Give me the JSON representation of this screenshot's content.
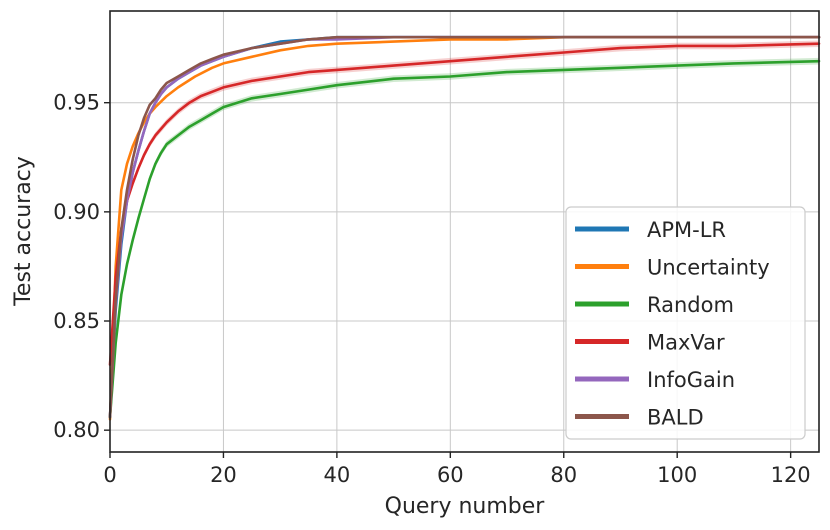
{
  "chart_data": {
    "type": "line",
    "title": "",
    "xlabel": "Query number",
    "ylabel": "Test accuracy",
    "xlim": [
      0,
      125
    ],
    "ylim": [
      0.79,
      0.992
    ],
    "grid": true,
    "legend_position": "lower-right",
    "x_ticks": [
      0,
      20,
      40,
      60,
      80,
      100,
      120
    ],
    "x_tick_labels": [
      "0",
      "20",
      "40",
      "60",
      "80",
      "100",
      "120"
    ],
    "y_ticks": [
      0.8,
      0.85,
      0.9,
      0.95
    ],
    "y_tick_labels": [
      "0.80",
      "0.85",
      "0.90",
      "0.95"
    ],
    "series": [
      {
        "name": "APM-LR",
        "color": "#1f77b4",
        "x": [
          0,
          1,
          2,
          3,
          4,
          5,
          6,
          7,
          8,
          9,
          10,
          12,
          14,
          16,
          18,
          20,
          25,
          30,
          35,
          40,
          50,
          60,
          80,
          100,
          125
        ],
        "y": [
          0.806,
          0.855,
          0.885,
          0.905,
          0.918,
          0.928,
          0.937,
          0.945,
          0.95,
          0.954,
          0.957,
          0.961,
          0.964,
          0.967,
          0.969,
          0.971,
          0.975,
          0.978,
          0.979,
          0.98,
          0.98,
          0.98,
          0.98,
          0.98,
          0.98
        ]
      },
      {
        "name": "Uncertainty",
        "color": "#ff7f0e",
        "x": [
          0,
          1,
          2,
          3,
          4,
          5,
          6,
          7,
          8,
          10,
          12,
          15,
          18,
          20,
          25,
          30,
          35,
          40,
          50,
          60,
          70,
          80,
          100,
          125
        ],
        "y": [
          0.805,
          0.875,
          0.91,
          0.922,
          0.93,
          0.936,
          0.941,
          0.945,
          0.948,
          0.953,
          0.957,
          0.962,
          0.966,
          0.968,
          0.971,
          0.974,
          0.976,
          0.977,
          0.978,
          0.979,
          0.979,
          0.98,
          0.98,
          0.98
        ]
      },
      {
        "name": "Random",
        "color": "#2ca02c",
        "x": [
          0,
          1,
          2,
          3,
          4,
          5,
          6,
          7,
          8,
          9,
          10,
          12,
          14,
          16,
          18,
          20,
          25,
          30,
          35,
          40,
          50,
          60,
          70,
          80,
          90,
          100,
          110,
          125
        ],
        "y": [
          0.806,
          0.84,
          0.862,
          0.876,
          0.887,
          0.897,
          0.906,
          0.915,
          0.922,
          0.927,
          0.931,
          0.935,
          0.939,
          0.942,
          0.945,
          0.948,
          0.952,
          0.954,
          0.956,
          0.958,
          0.961,
          0.962,
          0.964,
          0.965,
          0.966,
          0.967,
          0.968,
          0.969
        ]
      },
      {
        "name": "MaxVar",
        "color": "#d62728",
        "x": [
          0,
          1,
          2,
          3,
          4,
          5,
          6,
          7,
          8,
          10,
          12,
          14,
          16,
          18,
          20,
          25,
          30,
          35,
          40,
          50,
          60,
          70,
          80,
          90,
          100,
          110,
          125
        ],
        "y": [
          0.83,
          0.87,
          0.892,
          0.905,
          0.913,
          0.92,
          0.926,
          0.931,
          0.935,
          0.941,
          0.946,
          0.95,
          0.953,
          0.955,
          0.957,
          0.96,
          0.962,
          0.964,
          0.965,
          0.967,
          0.969,
          0.971,
          0.973,
          0.975,
          0.976,
          0.976,
          0.977
        ]
      },
      {
        "name": "InfoGain",
        "color": "#9467bd",
        "x": [
          0,
          1,
          2,
          3,
          4,
          5,
          6,
          7,
          8,
          9,
          10,
          12,
          14,
          16,
          18,
          20,
          25,
          30,
          35,
          40,
          50,
          60,
          80,
          100,
          125
        ],
        "y": [
          0.806,
          0.858,
          0.888,
          0.905,
          0.918,
          0.928,
          0.937,
          0.945,
          0.95,
          0.954,
          0.957,
          0.961,
          0.964,
          0.967,
          0.969,
          0.971,
          0.975,
          0.977,
          0.979,
          0.979,
          0.98,
          0.98,
          0.98,
          0.98,
          0.98
        ]
      },
      {
        "name": "BALD",
        "color": "#8c564b",
        "x": [
          0,
          1,
          2,
          3,
          4,
          5,
          6,
          7,
          8,
          9,
          10,
          12,
          14,
          16,
          18,
          20,
          25,
          30,
          35,
          40,
          50,
          60,
          80,
          100,
          125
        ],
        "y": [
          0.806,
          0.86,
          0.892,
          0.91,
          0.924,
          0.935,
          0.943,
          0.949,
          0.952,
          0.956,
          0.959,
          0.962,
          0.965,
          0.968,
          0.97,
          0.972,
          0.975,
          0.977,
          0.979,
          0.98,
          0.98,
          0.98,
          0.98,
          0.98,
          0.98
        ]
      }
    ]
  }
}
